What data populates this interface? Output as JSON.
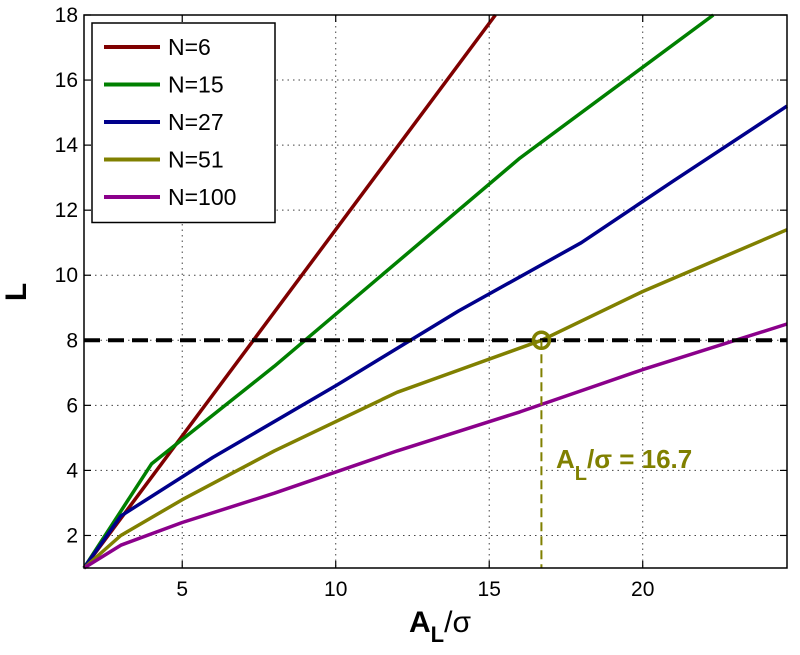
{
  "chart_data": {
    "type": "line",
    "xlabel_main": "A",
    "xlabel_sub": "L",
    "xlabel_tail": "/σ",
    "ylabel": "L",
    "xlim": [
      1.8,
      24.7
    ],
    "ylim": [
      1,
      18
    ],
    "x_ticks": [
      5,
      10,
      15,
      20
    ],
    "y_ticks": [
      2,
      4,
      6,
      8,
      10,
      12,
      14,
      16,
      18
    ],
    "grid": true,
    "legend_position": "top-left",
    "series": [
      {
        "name": "N=6",
        "color": "#7f0000",
        "points": [
          [
            1.8,
            1
          ],
          [
            15.2,
            18
          ]
        ]
      },
      {
        "name": "N=15",
        "color": "#008000",
        "points": [
          [
            1.8,
            1
          ],
          [
            4,
            4.2
          ],
          [
            8,
            7.2
          ],
          [
            12,
            10.4
          ],
          [
            16,
            13.6
          ],
          [
            22.3,
            18
          ]
        ]
      },
      {
        "name": "N=27",
        "color": "#00008b",
        "points": [
          [
            1.8,
            1
          ],
          [
            3,
            2.6
          ],
          [
            6,
            4.4
          ],
          [
            10,
            6.6
          ],
          [
            14,
            8.9
          ],
          [
            18,
            11
          ],
          [
            21,
            12.9
          ],
          [
            24.7,
            15.2
          ]
        ]
      },
      {
        "name": "N=51",
        "color": "#808000",
        "points": [
          [
            1.8,
            1
          ],
          [
            3,
            2
          ],
          [
            5,
            3.1
          ],
          [
            8,
            4.6
          ],
          [
            12,
            6.4
          ],
          [
            16.7,
            8
          ],
          [
            20,
            9.5
          ],
          [
            24.7,
            11.4
          ]
        ]
      },
      {
        "name": "N=100",
        "color": "#8b008b",
        "points": [
          [
            1.8,
            1
          ],
          [
            3,
            1.7
          ],
          [
            5,
            2.4
          ],
          [
            8,
            3.3
          ],
          [
            12,
            4.6
          ],
          [
            16,
            5.8
          ],
          [
            20,
            7.1
          ],
          [
            24.7,
            8.5
          ]
        ]
      }
    ],
    "reference_line": {
      "y": 8,
      "color": "#000000"
    },
    "marker": {
      "x": 16.7,
      "y": 8,
      "color": "#808000"
    },
    "annotation": {
      "main": "A",
      "sub": "L",
      "tail": "/σ = 16.7",
      "color": "#808000"
    }
  }
}
